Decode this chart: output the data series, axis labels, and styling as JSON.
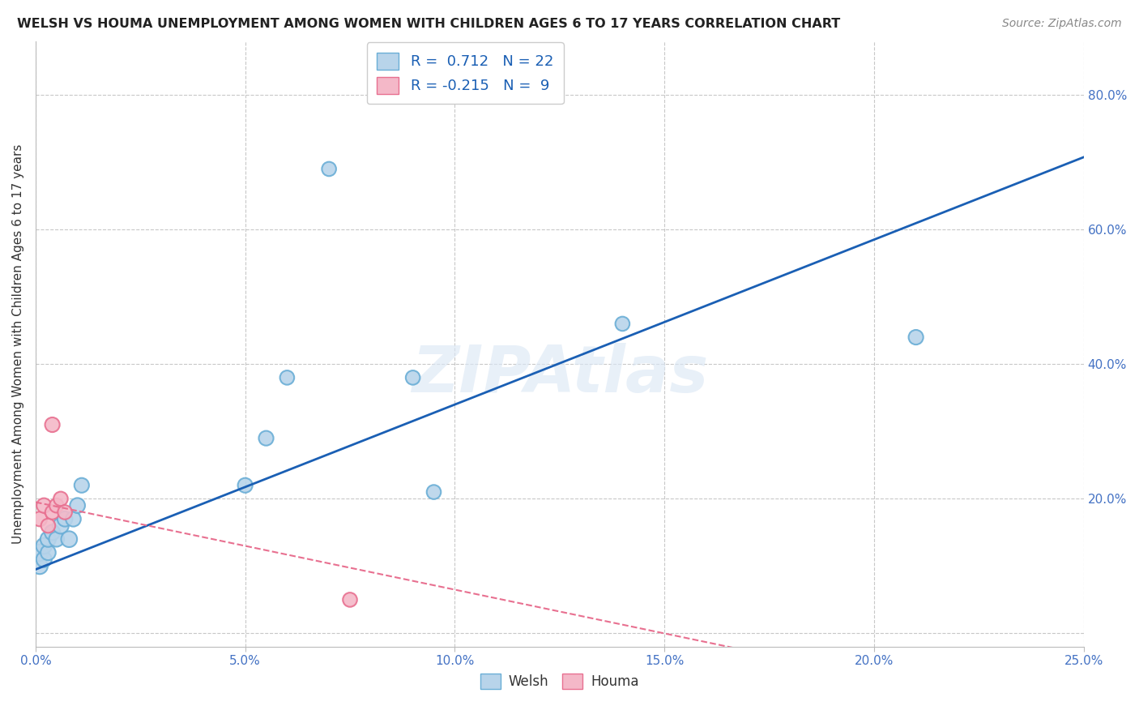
{
  "title": "WELSH VS HOUMA UNEMPLOYMENT AMONG WOMEN WITH CHILDREN AGES 6 TO 17 YEARS CORRELATION CHART",
  "source": "Source: ZipAtlas.com",
  "ylabel": "Unemployment Among Women with Children Ages 6 to 17 years",
  "xlim": [
    0.0,
    0.25
  ],
  "ylim": [
    -0.02,
    0.88
  ],
  "xticks": [
    0.0,
    0.05,
    0.1,
    0.15,
    0.2,
    0.25
  ],
  "xticklabels": [
    "0.0%",
    "5.0%",
    "10.0%",
    "15.0%",
    "20.0%",
    "25.0%"
  ],
  "yticks_right": [
    0.0,
    0.2,
    0.4,
    0.6,
    0.8
  ],
  "yticklabels_right": [
    "",
    "20.0%",
    "40.0%",
    "60.0%",
    "80.0%"
  ],
  "welsh_color": "#b8d4ea",
  "welsh_edge_color": "#6aaed6",
  "houma_color": "#f4b8c8",
  "houma_edge_color": "#e87090",
  "regression_welsh_color": "#1a5fb4",
  "regression_houma_color": "#e87090",
  "welsh_R": 0.712,
  "welsh_N": 22,
  "houma_R": -0.215,
  "houma_N": 9,
  "welsh_x": [
    0.001,
    0.001,
    0.002,
    0.002,
    0.003,
    0.003,
    0.004,
    0.005,
    0.006,
    0.007,
    0.008,
    0.009,
    0.01,
    0.011,
    0.05,
    0.055,
    0.06,
    0.07,
    0.09,
    0.095,
    0.14,
    0.21
  ],
  "welsh_y": [
    0.1,
    0.12,
    0.11,
    0.13,
    0.12,
    0.14,
    0.15,
    0.14,
    0.16,
    0.17,
    0.14,
    0.17,
    0.19,
    0.22,
    0.22,
    0.29,
    0.38,
    0.69,
    0.38,
    0.21,
    0.46,
    0.44
  ],
  "welsh_sizes": [
    200,
    220,
    190,
    200,
    180,
    190,
    190,
    180,
    200,
    180,
    200,
    180,
    180,
    170,
    170,
    170,
    160,
    160,
    160,
    160,
    160,
    170
  ],
  "houma_x": [
    0.001,
    0.002,
    0.003,
    0.004,
    0.004,
    0.005,
    0.006,
    0.007,
    0.075
  ],
  "houma_y": [
    0.17,
    0.19,
    0.16,
    0.18,
    0.31,
    0.19,
    0.2,
    0.18,
    0.05
  ],
  "houma_sizes": [
    170,
    170,
    160,
    160,
    170,
    160,
    160,
    160,
    160
  ],
  "watermark": "ZIPAtlas",
  "background_color": "#ffffff",
  "grid_color": "#c8c8c8",
  "tick_color_right": "#4472c4",
  "tick_color_bottom": "#4472c4",
  "welsh_regression_intercept": 0.095,
  "welsh_regression_slope": 2.45,
  "houma_regression_intercept": 0.195,
  "houma_regression_slope": -1.3
}
